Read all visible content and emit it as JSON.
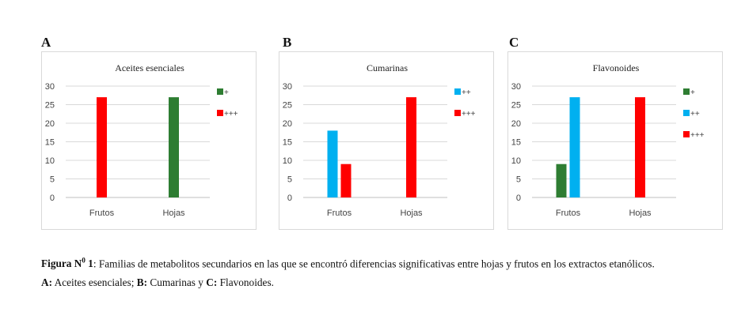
{
  "chart_data": [
    {
      "type": "bar",
      "panel": "A",
      "title": "Aceites esenciales",
      "categories": [
        "Frutos",
        "Hojas"
      ],
      "series": [
        {
          "name": "+",
          "color": "#2e7d32",
          "values": [
            0,
            27
          ]
        },
        {
          "name": "+++",
          "color": "#ff0000",
          "values": [
            27,
            0
          ]
        }
      ],
      "yticks": [
        0,
        5,
        10,
        15,
        20,
        25,
        30
      ],
      "ylim": [
        0,
        30
      ],
      "grid": true,
      "legend": "right"
    },
    {
      "type": "bar",
      "panel": "B",
      "title": "Cumarinas",
      "categories": [
        "Frutos",
        "Hojas"
      ],
      "series": [
        {
          "name": "++",
          "color": "#00b0f0",
          "values": [
            18,
            0
          ]
        },
        {
          "name": "+++",
          "color": "#ff0000",
          "values": [
            9,
            27
          ]
        }
      ],
      "yticks": [
        0,
        5,
        10,
        15,
        20,
        25,
        30
      ],
      "ylim": [
        0,
        30
      ],
      "grid": true,
      "legend": "right"
    },
    {
      "type": "bar",
      "panel": "C",
      "title": "Flavonoides",
      "categories": [
        "Frutos",
        "Hojas"
      ],
      "series": [
        {
          "name": "+",
          "color": "#2e7d32",
          "values": [
            9,
            0
          ]
        },
        {
          "name": "++",
          "color": "#00b0f0",
          "values": [
            27,
            0
          ]
        },
        {
          "name": "+++",
          "color": "#ff0000",
          "values": [
            0,
            27
          ]
        }
      ],
      "yticks": [
        0,
        5,
        10,
        15,
        20,
        25,
        30
      ],
      "ylim": [
        0,
        30
      ],
      "grid": true,
      "legend": "right"
    }
  ],
  "caption": {
    "fig_label": "Figura N",
    "fig_sup": "0",
    "fig_num": " 1",
    "line1": ": Familias de metabolitos secundarios en las que se encontró diferencias significativas entre hojas y frutos en los extractos etanólicos.",
    "a_label": "A:",
    "a_text": " Aceites esenciales; ",
    "b_label": "B:",
    "b_text": " Cumarinas y ",
    "c_label": "C:",
    "c_text": " Flavonoides."
  }
}
